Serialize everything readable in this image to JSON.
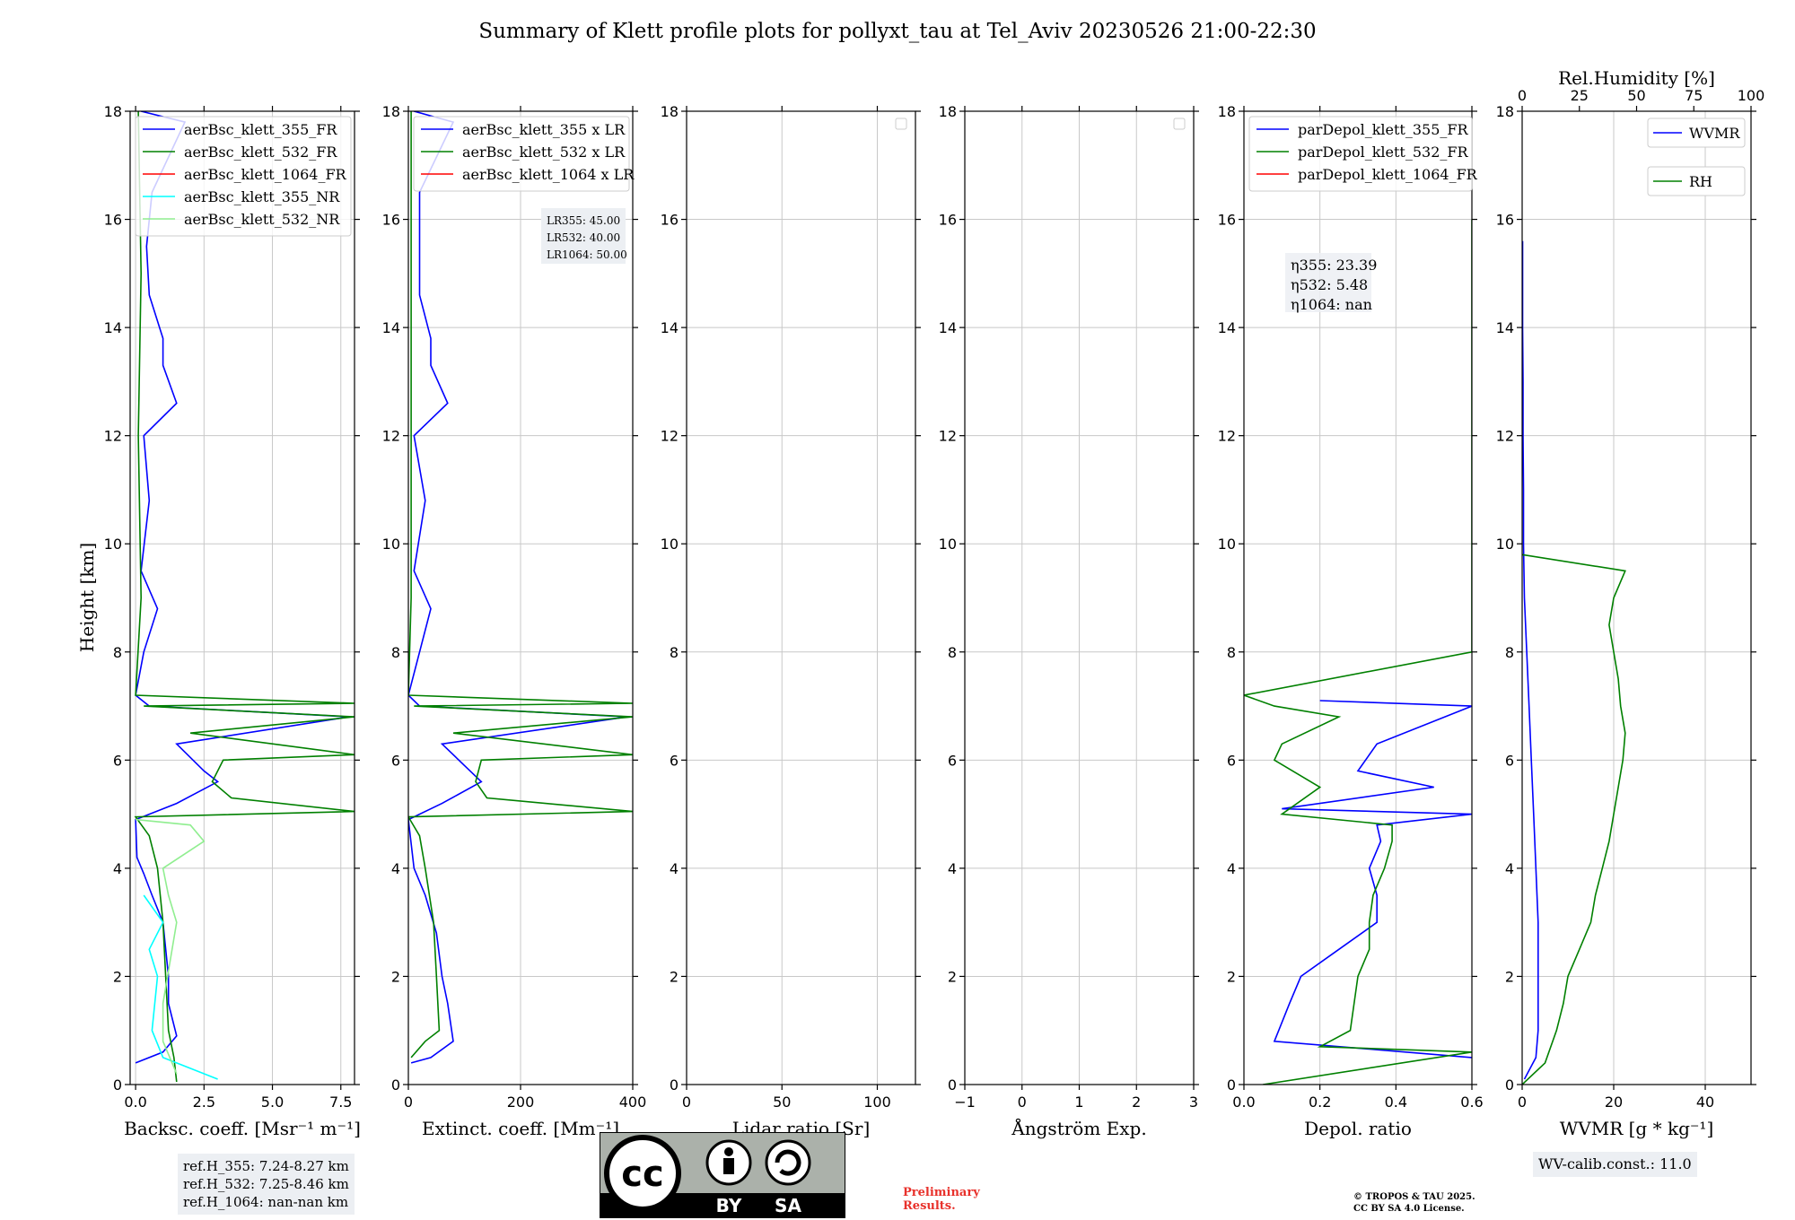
{
  "title": "Summary of Klett profile plots for pollyxt_tau at Tel_Aviv 20230526 21:00-22:30",
  "ylabel": "Height [km]",
  "panels": [
    {
      "xlabel": "Backsc. coeff. [Msr⁻¹ m⁻¹]",
      "xticks": [
        "0.0",
        "2.5",
        "5.0",
        "7.5"
      ],
      "legend": [
        "aerBsc_klett_355_FR",
        "aerBsc_klett_532_FR",
        "aerBsc_klett_1064_FR",
        "aerBsc_klett_355_NR",
        "aerBsc_klett_532_NR"
      ]
    },
    {
      "xlabel": "Extinct. coeff. [Mm⁻¹]",
      "xticks": [
        "0",
        "200",
        "400"
      ],
      "legend": [
        "aerBsc_klett_355 x LR",
        "aerBsc_klett_532 x LR",
        "aerBsc_klett_1064 x LR"
      ],
      "lr_box": [
        "LR355: 45.00",
        "LR532: 40.00",
        "LR1064: 50.00"
      ]
    },
    {
      "xlabel": "Lidar ratio [Sr]",
      "xticks": [
        "0",
        "50",
        "100"
      ]
    },
    {
      "xlabel": "Ångström Exp.",
      "xticks": [
        "−1",
        "0",
        "1",
        "2",
        "3"
      ]
    },
    {
      "xlabel": "Depol. ratio",
      "xticks": [
        "0.0",
        "0.2",
        "0.4",
        "0.6"
      ],
      "legend": [
        "parDepol_klett_355_FR",
        "parDepol_klett_532_FR",
        "parDepol_klett_1064_FR"
      ],
      "eta_box": [
        "η355: 23.39",
        "η532: 5.48",
        "η1064: nan"
      ]
    },
    {
      "xlabel": "WVMR [g * kg⁻¹]",
      "xticks": [
        "0",
        "20",
        "40"
      ],
      "top_label": "Rel.Humidity [%]",
      "top_ticks": [
        "0",
        "25",
        "50",
        "75",
        "100"
      ],
      "legend": [
        "WVMR",
        "RH"
      ]
    }
  ],
  "yticks": [
    "0",
    "2",
    "4",
    "6",
    "8",
    "10",
    "12",
    "14",
    "16",
    "18"
  ],
  "ref_box": [
    "ref.H_355: 7.24-8.27 km",
    "ref.H_532: 7.25-8.46 km",
    "ref.H_1064: nan-nan km"
  ],
  "wv_calib": "WV-calib.const.: 11.0",
  "preliminary": [
    "Preliminary",
    "Results."
  ],
  "copyright": [
    "© TROPOS & TAU 2025.",
    "CC BY SA 4.0 License."
  ],
  "cc_logo": {
    "cc": "cc",
    "by": "BY",
    "sa": "SA"
  },
  "colors": {
    "c355": "#0000ff",
    "c532": "#008000",
    "c1064": "#ff0000",
    "c355nr": "#00ffff",
    "c532nr": "#90ee90",
    "rh": "#008000",
    "wvmr": "#0000ff",
    "grid": "#c8c8c8",
    "note_bg": "#eceff3"
  },
  "chart_data": [
    {
      "type": "line",
      "title": "",
      "xlabel": "Backsc. coeff. [Msr⁻¹ m⁻¹]",
      "ylabel": "Height [km]",
      "xlim": [
        -0.2,
        8.0
      ],
      "ylim": [
        0,
        18
      ],
      "legend_position": "top-left",
      "series": [
        {
          "name": "aerBsc_klett_355_FR",
          "points": [
            [
              0.0,
              0.4
            ],
            [
              1.0,
              0.6
            ],
            [
              1.5,
              0.9
            ],
            [
              1.2,
              1.5
            ],
            [
              1.2,
              2.0
            ],
            [
              1.0,
              3.0
            ],
            [
              0.6,
              3.5
            ],
            [
              0.3,
              3.9
            ],
            [
              0.05,
              4.2
            ],
            [
              0.0,
              4.9
            ],
            [
              1.5,
              5.2
            ],
            [
              3.0,
              5.6
            ],
            [
              2.5,
              5.8
            ],
            [
              1.5,
              6.3
            ],
            [
              7.8,
              6.8
            ],
            [
              0.5,
              7.0
            ],
            [
              0.0,
              7.2
            ],
            [
              0.3,
              8.0
            ],
            [
              0.8,
              8.8
            ],
            [
              0.2,
              9.5
            ],
            [
              0.5,
              10.8
            ],
            [
              0.3,
              12.0
            ],
            [
              1.5,
              12.6
            ],
            [
              1.0,
              13.3
            ],
            [
              1.0,
              13.8
            ],
            [
              0.5,
              14.6
            ],
            [
              0.4,
              15.5
            ],
            [
              0.6,
              16.5
            ],
            [
              1.8,
              17.8
            ],
            [
              0.2,
              18.0
            ]
          ]
        },
        {
          "name": "aerBsc_klett_532_FR",
          "points": [
            [
              1.5,
              0.05
            ],
            [
              1.4,
              0.5
            ],
            [
              1.2,
              1.0
            ],
            [
              1.1,
              2.0
            ],
            [
              1.0,
              3.0
            ],
            [
              0.8,
              4.0
            ],
            [
              0.5,
              4.6
            ],
            [
              0.0,
              4.95
            ],
            [
              8.0,
              5.05
            ],
            [
              3.5,
              5.3
            ],
            [
              2.8,
              5.6
            ],
            [
              3.2,
              6.0
            ],
            [
              8.0,
              6.1
            ],
            [
              2.0,
              6.5
            ],
            [
              8.0,
              6.8
            ],
            [
              0.3,
              7.0
            ],
            [
              8.0,
              7.05
            ],
            [
              0.0,
              7.2
            ],
            [
              0.2,
              9.0
            ],
            [
              0.1,
              12.0
            ],
            [
              0.2,
              15.0
            ],
            [
              0.1,
              18.0
            ]
          ]
        },
        {
          "name": "aerBsc_klett_1064_FR",
          "points": []
        },
        {
          "name": "aerBsc_klett_355_NR",
          "points": [
            [
              3.0,
              0.1
            ],
            [
              1.0,
              0.5
            ],
            [
              0.6,
              1.0
            ],
            [
              0.8,
              2.0
            ],
            [
              0.5,
              2.5
            ],
            [
              1.0,
              3.0
            ],
            [
              0.3,
              3.5
            ]
          ]
        },
        {
          "name": "aerBsc_klett_532_NR",
          "points": [
            [
              1.5,
              0.2
            ],
            [
              1.0,
              0.8
            ],
            [
              1.0,
              1.5
            ],
            [
              1.5,
              3.0
            ],
            [
              1.2,
              3.5
            ],
            [
              1.0,
              4.0
            ],
            [
              2.5,
              4.5
            ],
            [
              2.0,
              4.8
            ],
            [
              0.0,
              4.9
            ]
          ]
        }
      ]
    },
    {
      "type": "line",
      "title": "",
      "xlabel": "Extinct. coeff. [Mm⁻¹]",
      "ylabel": "",
      "xlim": [
        0,
        400
      ],
      "ylim": [
        0,
        18
      ],
      "series": [
        {
          "name": "aerBsc_klett_355 x LR",
          "points": [
            [
              5,
              0.4
            ],
            [
              40,
              0.5
            ],
            [
              80,
              0.8
            ],
            [
              70,
              1.5
            ],
            [
              60,
              2.0
            ],
            [
              50,
              2.8
            ],
            [
              30,
              3.5
            ],
            [
              10,
              4.0
            ],
            [
              0,
              4.9
            ],
            [
              60,
              5.2
            ],
            [
              130,
              5.6
            ],
            [
              110,
              5.8
            ],
            [
              60,
              6.3
            ],
            [
              390,
              6.8
            ],
            [
              20,
              7.0
            ],
            [
              0,
              7.2
            ],
            [
              20,
              8.0
            ],
            [
              40,
              8.8
            ],
            [
              10,
              9.5
            ],
            [
              30,
              10.8
            ],
            [
              10,
              12.0
            ],
            [
              70,
              12.6
            ],
            [
              40,
              13.3
            ],
            [
              40,
              13.8
            ],
            [
              20,
              14.6
            ],
            [
              20,
              15.5
            ],
            [
              20,
              16.5
            ],
            [
              80,
              17.8
            ],
            [
              10,
              18.0
            ]
          ]
        },
        {
          "name": "aerBsc_klett_532 x LR",
          "points": [
            [
              5,
              0.5
            ],
            [
              30,
              0.8
            ],
            [
              55,
              1.0
            ],
            [
              50,
              2.0
            ],
            [
              45,
              3.0
            ],
            [
              30,
              4.0
            ],
            [
              20,
              4.6
            ],
            [
              0,
              4.95
            ],
            [
              400,
              5.05
            ],
            [
              140,
              5.3
            ],
            [
              120,
              5.6
            ],
            [
              130,
              6.0
            ],
            [
              400,
              6.1
            ],
            [
              80,
              6.5
            ],
            [
              400,
              6.8
            ],
            [
              10,
              7.0
            ],
            [
              400,
              7.05
            ],
            [
              0,
              7.2
            ],
            [
              5,
              9.0
            ],
            [
              5,
              12.0
            ],
            [
              5,
              15.0
            ],
            [
              5,
              18.0
            ]
          ]
        },
        {
          "name": "aerBsc_klett_1064 x LR",
          "points": []
        }
      ]
    },
    {
      "type": "line",
      "title": "",
      "xlabel": "Lidar ratio [Sr]",
      "ylabel": "",
      "xlim": [
        0,
        120
      ],
      "ylim": [
        0,
        18
      ],
      "series": []
    },
    {
      "type": "line",
      "title": "",
      "xlabel": "Ångström Exp.",
      "ylabel": "",
      "xlim": [
        -1,
        3
      ],
      "ylim": [
        0,
        18
      ],
      "series": []
    },
    {
      "type": "line",
      "title": "",
      "xlabel": "Depol. ratio",
      "ylabel": "",
      "xlim": [
        0.0,
        0.6
      ],
      "ylim": [
        0,
        18
      ],
      "series": [
        {
          "name": "parDepol_klett_355_FR",
          "points": [
            [
              0.6,
              0.5
            ],
            [
              0.08,
              0.8
            ],
            [
              0.12,
              1.5
            ],
            [
              0.15,
              2.0
            ],
            [
              0.25,
              2.5
            ],
            [
              0.35,
              3.0
            ],
            [
              0.35,
              3.5
            ],
            [
              0.33,
              4.0
            ],
            [
              0.36,
              4.5
            ],
            [
              0.35,
              4.8
            ],
            [
              0.6,
              5.0
            ],
            [
              0.1,
              5.1
            ],
            [
              0.5,
              5.5
            ],
            [
              0.3,
              5.8
            ],
            [
              0.35,
              6.3
            ],
            [
              0.6,
              7.0
            ],
            [
              0.2,
              7.1
            ]
          ]
        },
        {
          "name": "parDepol_klett_532_FR",
          "points": [
            [
              0.05,
              0.0
            ],
            [
              0.6,
              0.6
            ],
            [
              0.2,
              0.7
            ],
            [
              0.28,
              1.0
            ],
            [
              0.3,
              2.0
            ],
            [
              0.33,
              2.5
            ],
            [
              0.33,
              3.0
            ],
            [
              0.34,
              3.5
            ],
            [
              0.37,
              4.0
            ],
            [
              0.39,
              4.5
            ],
            [
              0.39,
              4.8
            ],
            [
              0.1,
              5.0
            ],
            [
              0.2,
              5.5
            ],
            [
              0.08,
              6.0
            ],
            [
              0.1,
              6.3
            ],
            [
              0.25,
              6.8
            ],
            [
              0.08,
              7.0
            ],
            [
              0.0,
              7.2
            ],
            [
              0.6,
              8.0
            ],
            [
              0.6,
              12.0
            ],
            [
              0.6,
              16.0
            ]
          ]
        },
        {
          "name": "parDepol_klett_1064_FR",
          "points": []
        }
      ]
    },
    {
      "type": "line",
      "title": "",
      "xlabel": "WVMR [g * kg⁻¹]",
      "ylabel": "",
      "xlim": [
        0,
        50
      ],
      "ylim": [
        0,
        18
      ],
      "top_axis": {
        "label": "Rel.Humidity [%]",
        "lim": [
          0,
          100
        ]
      },
      "series": [
        {
          "name": "WVMR",
          "points": [
            [
              0.5,
              0.1
            ],
            [
              3,
              0.5
            ],
            [
              3.5,
              1.0
            ],
            [
              3.5,
              2.0
            ],
            [
              3.5,
              3.0
            ],
            [
              3,
              4.0
            ],
            [
              2.5,
              5.0
            ],
            [
              2,
              6.0
            ],
            [
              1.5,
              7.0
            ],
            [
              1,
              8.0
            ],
            [
              0.5,
              9.0
            ],
            [
              0.3,
              10.0
            ],
            [
              0.3,
              11.0
            ],
            [
              0.2,
              12.0
            ],
            [
              0.2,
              13.0
            ],
            [
              0.1,
              14.0
            ],
            [
              0.1,
              15.0
            ],
            [
              0.1,
              15.6
            ]
          ]
        },
        {
          "name": "RH",
          "points": [
            [
              0,
              0.0
            ],
            [
              10,
              0.4
            ],
            [
              15,
              1.0
            ],
            [
              18,
              1.5
            ],
            [
              20,
              2.0
            ],
            [
              25,
              2.5
            ],
            [
              30,
              3.0
            ],
            [
              32,
              3.5
            ],
            [
              35,
              4.0
            ],
            [
              38,
              4.5
            ],
            [
              40,
              5.0
            ],
            [
              42,
              5.5
            ],
            [
              44,
              6.0
            ],
            [
              45,
              6.5
            ],
            [
              43,
              7.0
            ],
            [
              42,
              7.5
            ],
            [
              40,
              8.0
            ],
            [
              38,
              8.5
            ],
            [
              40,
              9.0
            ],
            [
              45,
              9.5
            ],
            [
              0,
              9.8
            ]
          ]
        }
      ]
    }
  ]
}
